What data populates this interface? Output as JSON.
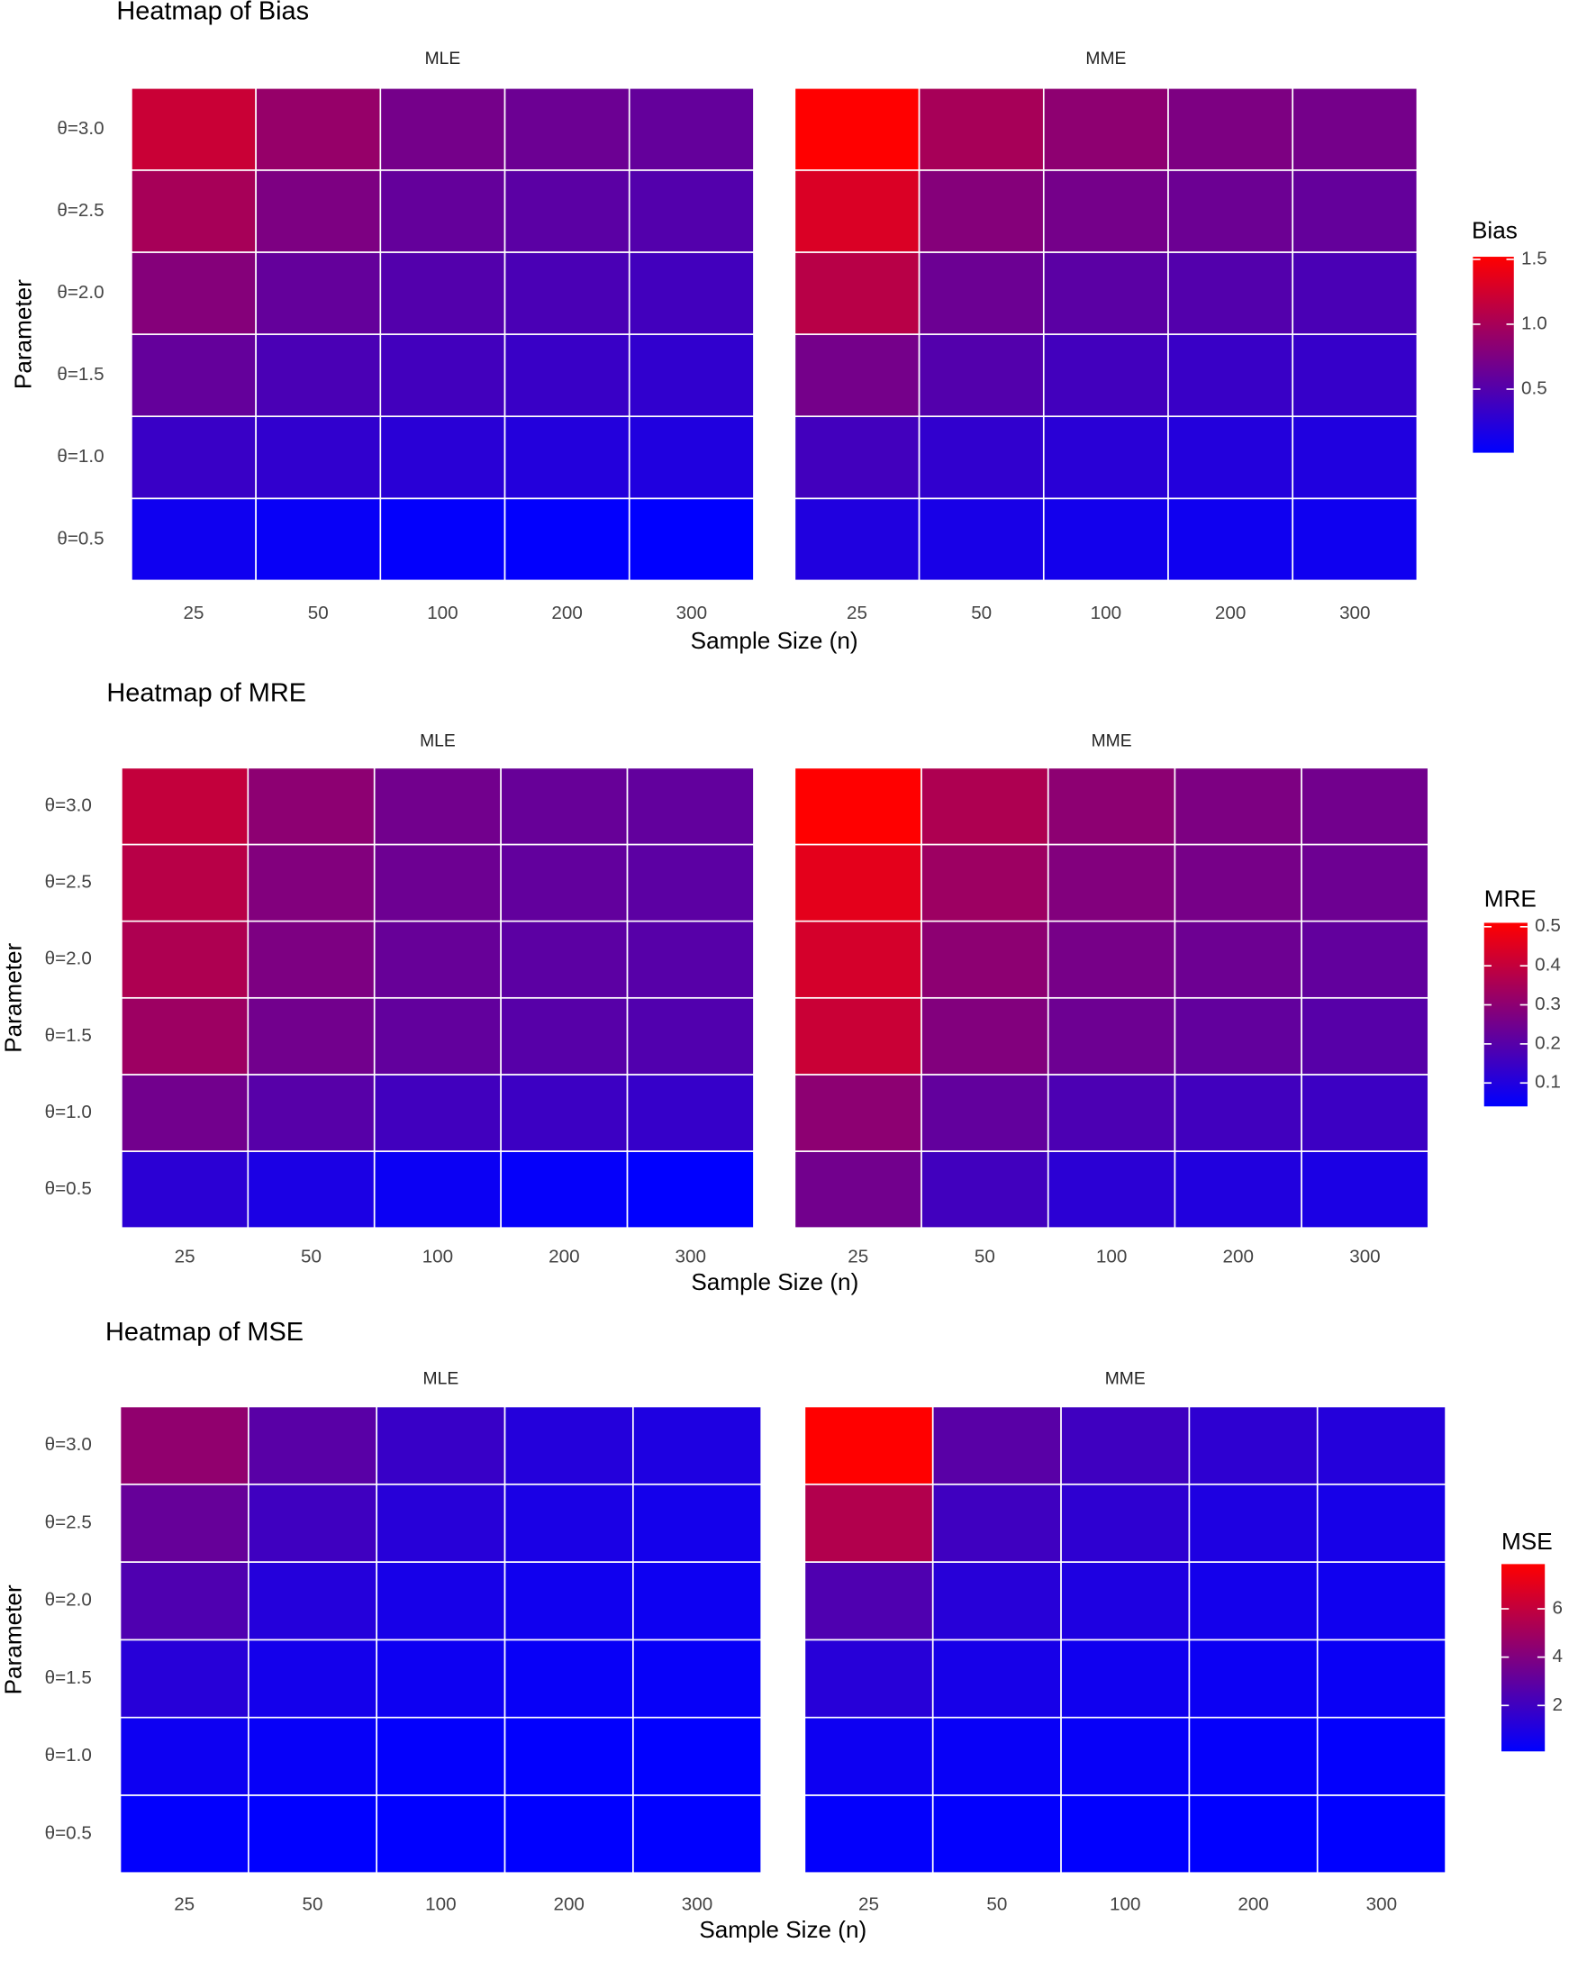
{
  "chart_data": [
    {
      "type": "heatmap",
      "title": "Heatmap of Bias",
      "x_label": "Sample Size (n)",
      "y_label": "Parameter",
      "categories": [
        "25",
        "50",
        "100",
        "200",
        "300"
      ],
      "y_categories": [
        "θ=0.5",
        "θ=1.0",
        "θ=1.5",
        "θ=2.0",
        "θ=2.5",
        "θ=3.0"
      ],
      "series": [
        {
          "name": "MLE",
          "values": [
            [
              0.1,
              0.06,
              0.03,
              0.02,
              0.01
            ],
            [
              0.35,
              0.3,
              0.25,
              0.22,
              0.2
            ],
            [
              0.6,
              0.45,
              0.4,
              0.35,
              0.3
            ],
            [
              0.8,
              0.6,
              0.5,
              0.45,
              0.4
            ],
            [
              1.0,
              0.75,
              0.6,
              0.55,
              0.5
            ],
            [
              1.2,
              0.9,
              0.7,
              0.65,
              0.6
            ]
          ]
        },
        {
          "name": "MME",
          "values": [
            [
              0.2,
              0.15,
              0.12,
              0.1,
              0.1
            ],
            [
              0.4,
              0.3,
              0.25,
              0.22,
              0.2
            ],
            [
              0.7,
              0.5,
              0.4,
              0.35,
              0.33
            ],
            [
              1.1,
              0.65,
              0.55,
              0.5,
              0.45
            ],
            [
              1.3,
              0.8,
              0.7,
              0.65,
              0.6
            ],
            [
              1.52,
              1.0,
              0.85,
              0.75,
              0.7
            ]
          ]
        }
      ],
      "legend_title": "Bias",
      "clim": [
        0.01,
        1.52
      ],
      "cticks": [
        0.5,
        {
          "value": 1,
          "label": "1.0"
        },
        1.5
      ],
      "color_low": "#0000ff",
      "color_high": "#ff0000"
    },
    {
      "type": "heatmap",
      "title": "Heatmap of MRE",
      "x_label": "Sample Size (n)",
      "y_label": "Parameter",
      "categories": [
        "25",
        "50",
        "100",
        "200",
        "300"
      ],
      "y_categories": [
        "θ=0.5",
        "θ=1.0",
        "θ=1.5",
        "θ=2.0",
        "θ=2.5",
        "θ=3.0"
      ],
      "series": [
        {
          "name": "MLE",
          "values": [
            [
              0.12,
              0.09,
              0.06,
              0.05,
              0.04
            ],
            [
              0.25,
              0.2,
              0.16,
              0.15,
              0.14
            ],
            [
              0.33,
              0.25,
              0.22,
              0.2,
              0.19
            ],
            [
              0.36,
              0.27,
              0.23,
              0.21,
              0.2
            ],
            [
              0.38,
              0.28,
              0.24,
              0.22,
              0.21
            ],
            [
              0.4,
              0.3,
              0.25,
              0.23,
              0.22
            ]
          ]
        },
        {
          "name": "MME",
          "values": [
            [
              0.25,
              0.16,
              0.12,
              0.1,
              0.09
            ],
            [
              0.3,
              0.22,
              0.18,
              0.16,
              0.15
            ],
            [
              0.41,
              0.28,
              0.24,
              0.22,
              0.2
            ],
            [
              0.43,
              0.3,
              0.26,
              0.24,
              0.22
            ],
            [
              0.46,
              0.33,
              0.28,
              0.26,
              0.24
            ],
            [
              0.51,
              0.36,
              0.3,
              0.27,
              0.25
            ]
          ]
        }
      ],
      "legend_title": "MRE",
      "clim": [
        0.04,
        0.51
      ],
      "cticks": [
        0.1,
        0.2,
        0.3,
        0.4,
        0.5
      ],
      "color_low": "#0000ff",
      "color_high": "#ff0000"
    },
    {
      "type": "heatmap",
      "title": "Heatmap of MSE",
      "x_label": "Sample Size (n)",
      "y_label": "Parameter",
      "categories": [
        "25",
        "50",
        "100",
        "200",
        "300"
      ],
      "y_categories": [
        "θ=0.5",
        "θ=1.0",
        "θ=1.5",
        "θ=2.0",
        "θ=2.5",
        "θ=3.0"
      ],
      "series": [
        {
          "name": "MLE",
          "values": [
            [
              0.15,
              0.1,
              0.1,
              0.1,
              0.1
            ],
            [
              0.5,
              0.3,
              0.2,
              0.15,
              0.12
            ],
            [
              1.3,
              0.7,
              0.5,
              0.35,
              0.3
            ],
            [
              2.5,
              1.2,
              0.8,
              0.6,
              0.5
            ],
            [
              3.2,
              2.0,
              1.3,
              0.9,
              0.7
            ],
            [
              4.5,
              2.8,
              1.8,
              1.2,
              1.0
            ]
          ]
        },
        {
          "name": "MME",
          "values": [
            [
              0.2,
              0.15,
              0.12,
              0.1,
              0.1
            ],
            [
              0.5,
              0.35,
              0.3,
              0.25,
              0.2
            ],
            [
              1.3,
              0.8,
              0.6,
              0.45,
              0.4
            ],
            [
              2.5,
              1.3,
              1.0,
              0.7,
              0.6
            ],
            [
              5.5,
              2.0,
              1.5,
              1.0,
              0.8
            ],
            [
              7.85,
              2.8,
              2.0,
              1.5,
              1.2
            ]
          ]
        }
      ],
      "legend_title": "MSE",
      "clim": [
        0.1,
        7.85
      ],
      "cticks": [
        2,
        4,
        6
      ],
      "color_low": "#0000ff",
      "color_high": "#ff0000"
    }
  ]
}
